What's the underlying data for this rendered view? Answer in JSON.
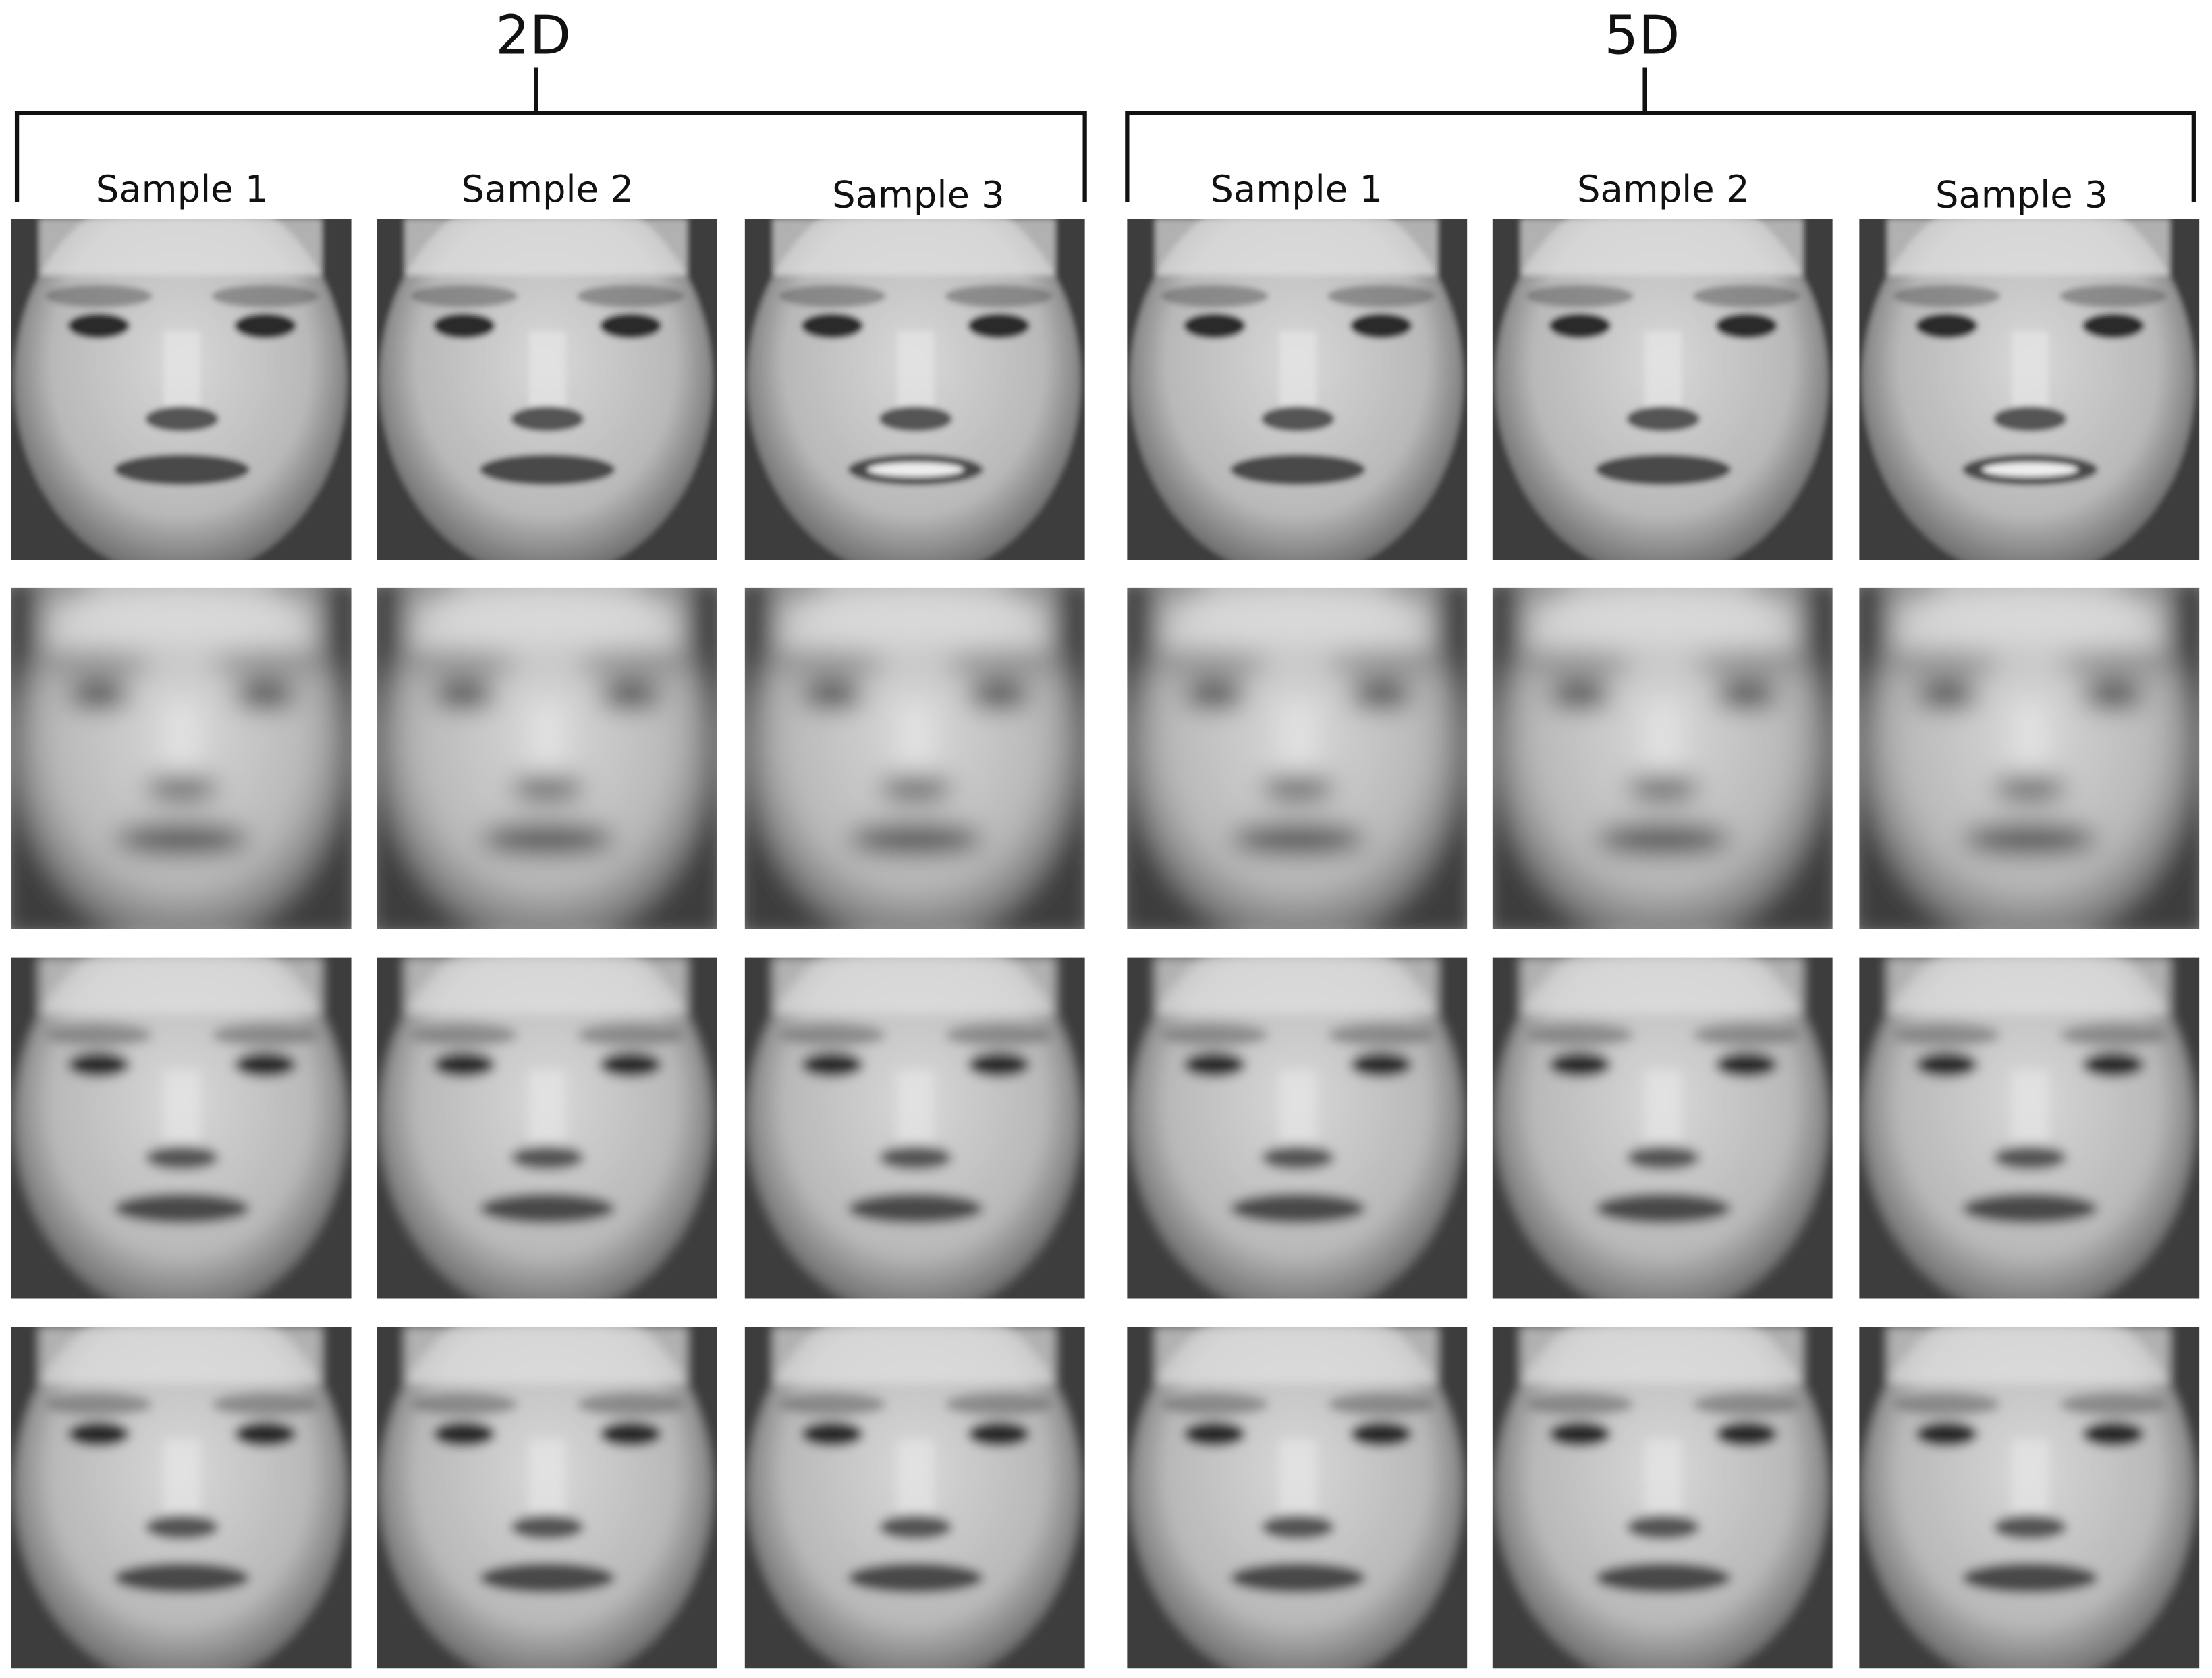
{
  "groups": [
    {
      "title": "2D",
      "columns": [
        "Sample 1",
        "Sample 2",
        "Sample 3"
      ]
    },
    {
      "title": "5D",
      "columns": [
        "Sample 1",
        "Sample 2",
        "Sample 3"
      ]
    }
  ]
}
